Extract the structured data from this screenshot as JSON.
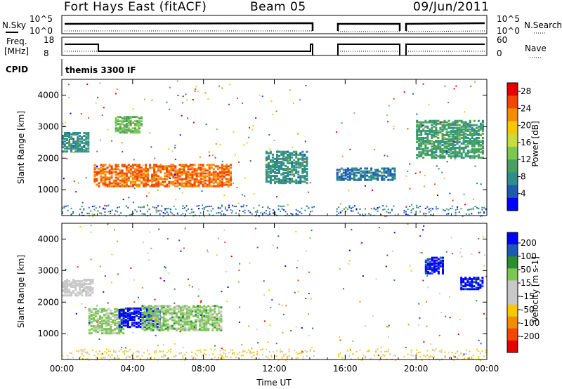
{
  "header": {
    "site": "Fort Hays East (fitACF)",
    "beam": "Beam 05",
    "date": "09/Jun/2011"
  },
  "params": {
    "nsky_label": "N.Sky",
    "freq_label_line1": "Freq.",
    "freq_label_line2": "[MHz]",
    "cpid_label": "CPID",
    "nsearch_label": "N.Search",
    "nave_label": "Nave",
    "noise_ticks": [
      "10^5",
      "10^0"
    ],
    "noise_right_ticks": [
      "10^5",
      "10^0"
    ],
    "freq_ticks": [
      "18",
      "8"
    ],
    "nave_ticks": [
      "60",
      "0"
    ],
    "cpid_text": "themis 3300 IF"
  },
  "colors": {
    "power_scale": [
      "#0000ff",
      "#1e5ab4",
      "#2d8c8c",
      "#48a060",
      "#7ac850",
      "#c8dc3c",
      "#f5c800",
      "#f58c00",
      "#f54600",
      "#e60000"
    ],
    "velocity_scale": [
      "#e60000",
      "#f54600",
      "#f58c00",
      "#f5c800",
      "#c8c8c8",
      "#c8c8c8",
      "#7ac850",
      "#2d8c2d",
      "#1e5ab4",
      "#0000ff"
    ]
  },
  "chart_data": [
    {
      "type": "heatmap",
      "title": "Power",
      "xlabel": "Time UT",
      "ylabel": "Slant Range [km]",
      "x_ticks": [
        "00:00",
        "04:00",
        "08:00",
        "12:00",
        "16:00",
        "20:00",
        "00:00"
      ],
      "x_range_hours": [
        0,
        24
      ],
      "y_ticks": [
        1000,
        2000,
        3000,
        4000
      ],
      "y_range": [
        180,
        4500
      ],
      "colorbar": {
        "label": "Power [dB]",
        "ticks": [
          4,
          8,
          12,
          16,
          20,
          24,
          28
        ],
        "range": [
          0,
          30
        ]
      },
      "data_gaps_hours": [
        [
          14.2,
          15.4
        ],
        [
          18.9,
          19.3
        ]
      ],
      "features": [
        {
          "t0": 0.0,
          "t1": 1.5,
          "r0": 2200,
          "r1": 2800,
          "level": 8
        },
        {
          "t0": 1.8,
          "t1": 9.5,
          "r0": 1100,
          "r1": 1800,
          "level": 24
        },
        {
          "t0": 3.0,
          "t1": 4.5,
          "r0": 2800,
          "r1": 3300,
          "level": 12
        },
        {
          "t0": 11.5,
          "t1": 13.8,
          "r0": 1200,
          "r1": 2200,
          "level": 8
        },
        {
          "t0": 15.5,
          "t1": 18.8,
          "r0": 1300,
          "r1": 1700,
          "level": 6
        },
        {
          "t0": 20.0,
          "t1": 23.8,
          "r0": 2000,
          "r1": 3200,
          "level": 10
        }
      ]
    },
    {
      "type": "heatmap",
      "title": "Velocity",
      "xlabel": "Time UT",
      "ylabel": "Slant Range [km]",
      "x_ticks": [
        "00:00",
        "04:00",
        "08:00",
        "12:00",
        "16:00",
        "20:00",
        "00:00"
      ],
      "x_range_hours": [
        0,
        24
      ],
      "y_ticks": [
        1000,
        2000,
        3000,
        4000
      ],
      "y_range": [
        180,
        4500
      ],
      "colorbar": {
        "label": "Velocity [m s-1]",
        "ticks": [
          200,
          100,
          50,
          15,
          -15,
          -50,
          -100,
          -200
        ],
        "range": [
          -250,
          250
        ]
      },
      "data_gaps_hours": [
        [
          14.2,
          15.4
        ],
        [
          18.9,
          19.3
        ]
      ],
      "features": [
        {
          "t0": 0.0,
          "t1": 1.8,
          "r0": 2200,
          "r1": 2700,
          "level": 0
        },
        {
          "t0": 1.5,
          "t1": 3.5,
          "r0": 1000,
          "r1": 1800,
          "level": 60
        },
        {
          "t0": 3.2,
          "t1": 5.5,
          "r0": 1200,
          "r1": 1800,
          "level": 220
        },
        {
          "t0": 4.5,
          "t1": 9.0,
          "r0": 1100,
          "r1": 1900,
          "level": 70
        },
        {
          "t0": 20.5,
          "t1": 21.5,
          "r0": 2900,
          "r1": 3400,
          "level": 220
        },
        {
          "t0": 22.5,
          "t1": 23.8,
          "r0": 2400,
          "r1": 2800,
          "level": 220
        }
      ]
    }
  ]
}
